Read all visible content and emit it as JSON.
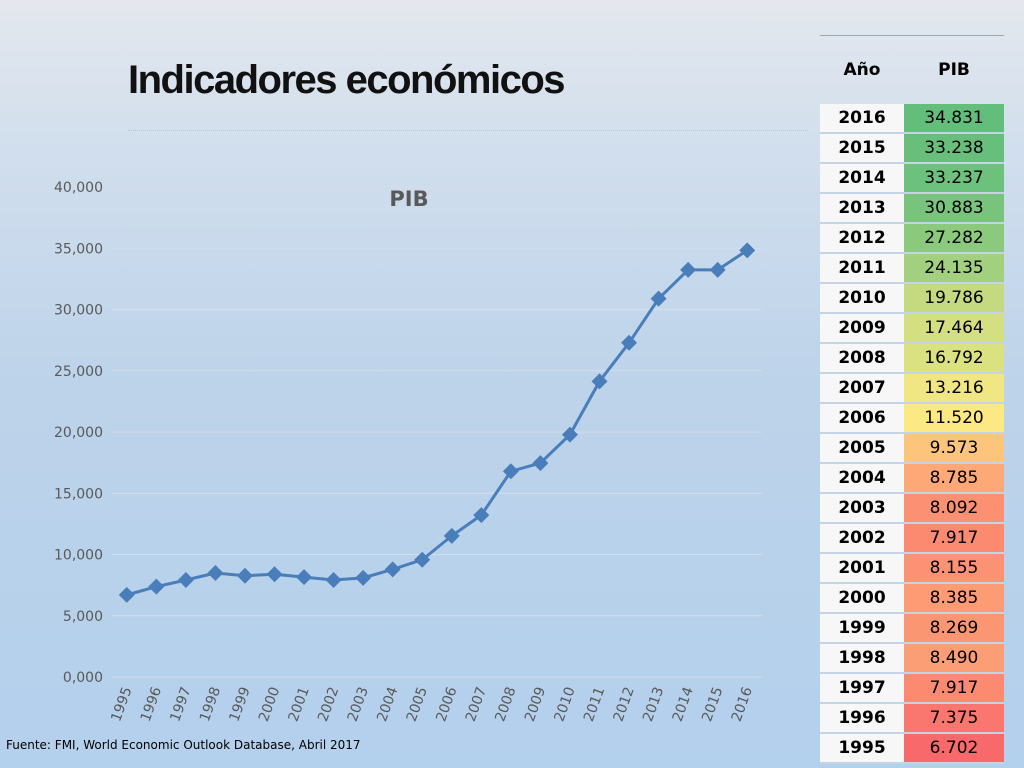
{
  "slide": {
    "title": "Indicadores económicos",
    "source": "Fuente: FMI, World Economic Outlook Database, Abril 2017"
  },
  "table": {
    "headers": {
      "year": "Año",
      "value": "PIB"
    },
    "rows": [
      {
        "year": "2016",
        "value": "34.831",
        "color": "#63be7b"
      },
      {
        "year": "2015",
        "value": "33.238",
        "color": "#68bf7c"
      },
      {
        "year": "2014",
        "value": "33.237",
        "color": "#6cc17c"
      },
      {
        "year": "2013",
        "value": "30.883",
        "color": "#79c47c"
      },
      {
        "year": "2012",
        "value": "27.282",
        "color": "#8bc97d"
      },
      {
        "year": "2011",
        "value": "24.135",
        "color": "#a2d07e"
      },
      {
        "year": "2010",
        "value": "19.786",
        "color": "#c4d980"
      },
      {
        "year": "2009",
        "value": "17.464",
        "color": "#d3df81"
      },
      {
        "year": "2008",
        "value": "16.792",
        "color": "#dae181"
      },
      {
        "year": "2007",
        "value": "13.216",
        "color": "#f0e683"
      },
      {
        "year": "2006",
        "value": "11.520",
        "color": "#fde983"
      },
      {
        "year": "2005",
        "value": "9.573",
        "color": "#fdc57c"
      },
      {
        "year": "2004",
        "value": "8.785",
        "color": "#fca977"
      },
      {
        "year": "2003",
        "value": "8.092",
        "color": "#fb9072"
      },
      {
        "year": "2002",
        "value": "7.917",
        "color": "#fb8a71"
      },
      {
        "year": "2001",
        "value": "8.155",
        "color": "#fb9273"
      },
      {
        "year": "2000",
        "value": "8.385",
        "color": "#fc9b74"
      },
      {
        "year": "1999",
        "value": "8.269",
        "color": "#fb9673"
      },
      {
        "year": "1998",
        "value": "8.490",
        "color": "#fc9e75"
      },
      {
        "year": "1997",
        "value": "7.917",
        "color": "#fb8a71"
      },
      {
        "year": "1996",
        "value": "7.375",
        "color": "#f9776e"
      },
      {
        "year": "1995",
        "value": "6.702",
        "color": "#f8696b"
      }
    ]
  },
  "chart_data": {
    "type": "line",
    "title": "PIB",
    "x": [
      "1995",
      "1996",
      "1997",
      "1998",
      "1999",
      "2000",
      "2001",
      "2002",
      "2003",
      "2004",
      "2005",
      "2006",
      "2007",
      "2008",
      "2009",
      "2010",
      "2011",
      "2012",
      "2013",
      "2014",
      "2015",
      "2016"
    ],
    "series": [
      {
        "values": [
          6.702,
          7.375,
          7.917,
          8.49,
          8.269,
          8.385,
          8.155,
          7.917,
          8.092,
          8.785,
          9.573,
          11.52,
          13.216,
          16.792,
          17.464,
          19.786,
          24.135,
          27.282,
          30.883,
          33.237,
          33.238,
          34.831
        ],
        "color": "#4a7ebb",
        "marker": "diamond"
      }
    ],
    "yticks": [
      "0,000",
      "5,000",
      "10,000",
      "15,000",
      "20,000",
      "25,000",
      "30,000",
      "35,000",
      "40,000"
    ],
    "ylim": [
      0,
      40
    ],
    "grid": true,
    "legend": "none"
  }
}
